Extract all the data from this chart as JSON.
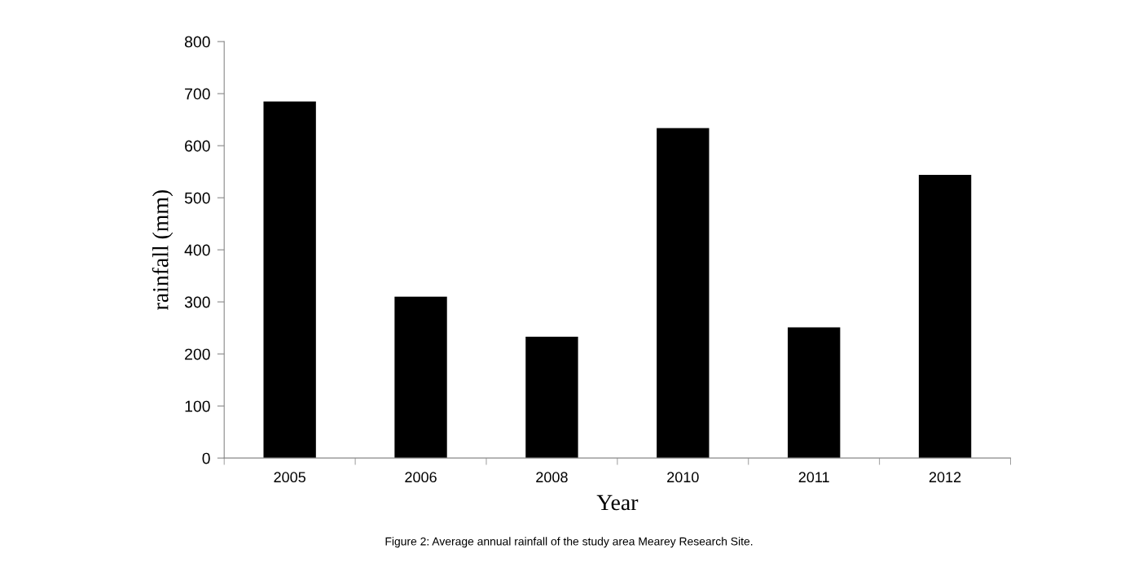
{
  "chart_data": {
    "type": "bar",
    "categories": [
      "2005",
      "2006",
      "2008",
      "2010",
      "2011",
      "2012"
    ],
    "values": [
      685,
      310,
      233,
      634,
      251,
      544
    ],
    "color": "#000000",
    "xlabel": "Year",
    "ylabel": "rainfall (mm)",
    "ylim": [
      0,
      800
    ],
    "yticks": [
      0,
      100,
      200,
      300,
      400,
      500,
      600,
      700,
      800
    ],
    "grid": false,
    "legend": false,
    "annotations": [
      "Figure 2: Average annual rainfall of the study area Mearey Research Site."
    ]
  }
}
